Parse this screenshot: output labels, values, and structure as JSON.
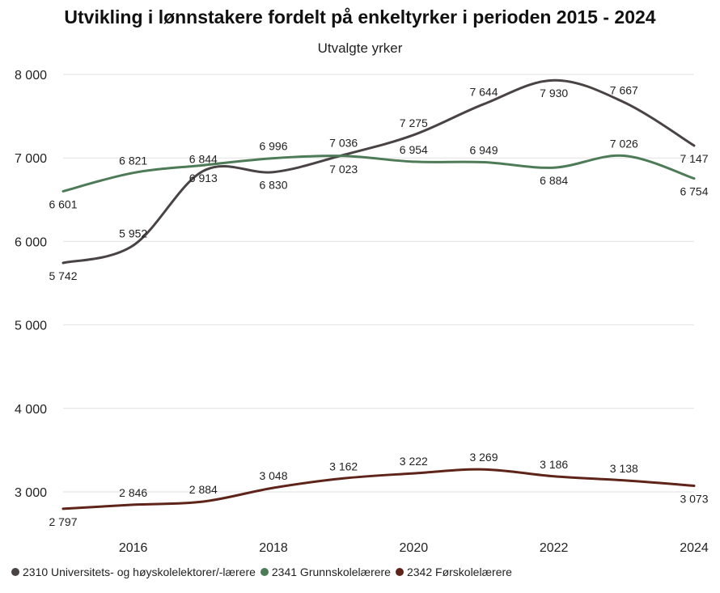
{
  "chart_data": {
    "type": "line",
    "title": "Utvikling i lønnstakere fordelt på enkeltyrker i perioden 2015 - 2024",
    "subtitle": "Utvalgte yrker",
    "xlabel": "",
    "ylabel": "",
    "x": [
      2015,
      2016,
      2017,
      2018,
      2019,
      2020,
      2021,
      2022,
      2023,
      2024
    ],
    "x_tick_values": [
      2016,
      2018,
      2020,
      2022,
      2024
    ],
    "x_tick_labels": [
      "2016",
      "2018",
      "2020",
      "2022",
      "2024"
    ],
    "ylim": [
      2500,
      8100
    ],
    "y_tick_values": [
      3000,
      4000,
      5000,
      6000,
      7000,
      8000
    ],
    "y_tick_labels": [
      "3 000",
      "4 000",
      "5 000",
      "6 000",
      "7 000",
      "8 000"
    ],
    "grid": true,
    "legend_position": "bottom-left",
    "series": [
      {
        "name": "2310 Universitets- og høyskolelektorer/-lærere",
        "color": "#4a4344",
        "values": [
          5742,
          5952,
          6844,
          6830,
          7036,
          7275,
          7644,
          7930,
          7667,
          7147
        ],
        "labels": [
          "5 742",
          "5 952",
          "6 844",
          "6 830",
          "7 036",
          "7 275",
          "7 644",
          "7 930",
          "7 667",
          "7 147"
        ],
        "label_pos": [
          "below",
          "above",
          "above",
          "below",
          "above",
          "above",
          "above",
          "below",
          "above",
          "below"
        ]
      },
      {
        "name": "2341 Grunnskolelærere",
        "color": "#4e7b57",
        "values": [
          6601,
          6821,
          6913,
          6996,
          7023,
          6954,
          6949,
          6884,
          7026,
          6754
        ],
        "labels": [
          "6 601",
          "6 821",
          "6 913",
          "6 996",
          "7 023",
          "6 954",
          "6 949",
          "6 884",
          "7 026",
          "6 754"
        ],
        "label_pos": [
          "below",
          "above",
          "below",
          "above",
          "below",
          "above",
          "above",
          "below",
          "above",
          "below"
        ]
      },
      {
        "name": "2342 Førskolelærere",
        "color": "#5e2419",
        "values": [
          2797,
          2846,
          2884,
          3048,
          3162,
          3222,
          3269,
          3186,
          3138,
          3073
        ],
        "labels": [
          "2 797",
          "2 846",
          "2 884",
          "3 048",
          "3 162",
          "3 222",
          "3 269",
          "3 186",
          "3 138",
          "3 073"
        ],
        "label_pos": [
          "below",
          "above",
          "above",
          "above",
          "above",
          "above",
          "above",
          "above",
          "above",
          "below"
        ]
      }
    ]
  }
}
